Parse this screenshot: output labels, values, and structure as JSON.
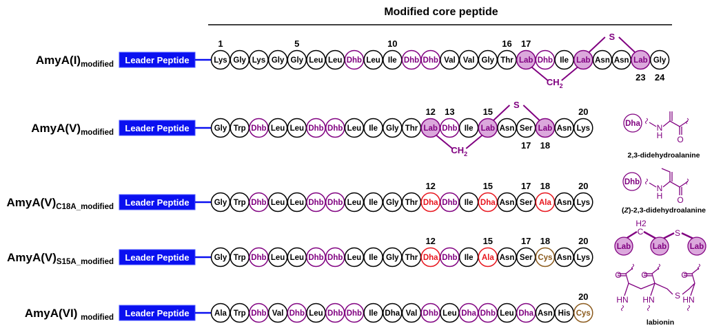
{
  "title": "Modified core peptide",
  "leader_label": "Leader Peptide",
  "colors": {
    "normal": "#000000",
    "purple": "#800080",
    "red": "#e8141c",
    "brown": "#8b5a1c",
    "lab_fill": "#dba8dc",
    "leader": "#0a10f0"
  },
  "rows": [
    {
      "name": "AmyA(I)",
      "subscript": "modified",
      "residues": [
        [
          "Lys",
          "n"
        ],
        [
          "Gly",
          "n"
        ],
        [
          "Lys",
          "n"
        ],
        [
          "Gly",
          "n"
        ],
        [
          "Gly",
          "n"
        ],
        [
          "Leu",
          "n"
        ],
        [
          "Leu",
          "n"
        ],
        [
          "Dhb",
          "p"
        ],
        [
          "Leu",
          "n"
        ],
        [
          "Ile",
          "n"
        ],
        [
          "Dhb",
          "p"
        ],
        [
          "Dhb",
          "p"
        ],
        [
          "Val",
          "n"
        ],
        [
          "Val",
          "n"
        ],
        [
          "Gly",
          "n"
        ],
        [
          "Thr",
          "n"
        ],
        [
          "Lab",
          "l"
        ],
        [
          "Dhb",
          "p"
        ],
        [
          "Ile",
          "n"
        ],
        [
          "Lab",
          "l"
        ],
        [
          "Asn",
          "n"
        ],
        [
          "Asn",
          "n"
        ],
        [
          "Lab",
          "l"
        ],
        [
          "Gly",
          "n"
        ]
      ],
      "numbers_above": [
        1,
        5,
        10,
        16,
        17
      ],
      "numbers_below": [
        23,
        24
      ],
      "bridges": [
        {
          "label": "S",
          "from": 20,
          "to": 23,
          "side": "above"
        },
        {
          "label": "CH",
          "label_sub": "2",
          "from": 17,
          "to": 20,
          "side": "below"
        }
      ]
    },
    {
      "name": "AmyA(V)",
      "subscript": "modified",
      "residues": [
        [
          "Gly",
          "n"
        ],
        [
          "Trp",
          "n"
        ],
        [
          "Dhb",
          "p"
        ],
        [
          "Leu",
          "n"
        ],
        [
          "Leu",
          "n"
        ],
        [
          "Dhb",
          "p"
        ],
        [
          "Dhb",
          "p"
        ],
        [
          "Leu",
          "n"
        ],
        [
          "Ile",
          "n"
        ],
        [
          "Gly",
          "n"
        ],
        [
          "Thr",
          "n"
        ],
        [
          "Lab",
          "l"
        ],
        [
          "Dhb",
          "p"
        ],
        [
          "Ile",
          "n"
        ],
        [
          "Lab",
          "l"
        ],
        [
          "Asn",
          "n"
        ],
        [
          "Ser",
          "n"
        ],
        [
          "Lab",
          "l"
        ],
        [
          "Asn",
          "n"
        ],
        [
          "Lys",
          "n"
        ]
      ],
      "numbers_above": [
        12,
        13,
        15,
        20
      ],
      "numbers_below": [
        17,
        18
      ],
      "bridges": [
        {
          "label": "S",
          "from": 15,
          "to": 18,
          "side": "above"
        },
        {
          "label": "CH",
          "label_sub": "2",
          "from": 12,
          "to": 15,
          "side": "below"
        }
      ]
    },
    {
      "name": "AmyA(V)",
      "subscript": "C18A_modified",
      "residues": [
        [
          "Gly",
          "n"
        ],
        [
          "Trp",
          "n"
        ],
        [
          "Dhb",
          "p"
        ],
        [
          "Leu",
          "n"
        ],
        [
          "Leu",
          "n"
        ],
        [
          "Dhb",
          "p"
        ],
        [
          "Dhb",
          "p"
        ],
        [
          "Leu",
          "n"
        ],
        [
          "Ile",
          "n"
        ],
        [
          "Gly",
          "n"
        ],
        [
          "Thr",
          "n"
        ],
        [
          "Dha",
          "r"
        ],
        [
          "Dhb",
          "p"
        ],
        [
          "Ile",
          "n"
        ],
        [
          "Dha",
          "r"
        ],
        [
          "Asn",
          "n"
        ],
        [
          "Ser",
          "n"
        ],
        [
          "Ala",
          "r"
        ],
        [
          "Asn",
          "n"
        ],
        [
          "Lys",
          "n"
        ]
      ],
      "numbers_above": [
        12,
        15,
        17,
        18,
        20
      ],
      "numbers_below": [],
      "bridges": []
    },
    {
      "name": "AmyA(V)",
      "subscript": "S15A_modified",
      "residues": [
        [
          "Gly",
          "n"
        ],
        [
          "Trp",
          "n"
        ],
        [
          "Dhb",
          "p"
        ],
        [
          "Leu",
          "n"
        ],
        [
          "Leu",
          "n"
        ],
        [
          "Dhb",
          "p"
        ],
        [
          "Dhb",
          "p"
        ],
        [
          "Leu",
          "n"
        ],
        [
          "Ile",
          "n"
        ],
        [
          "Gly",
          "n"
        ],
        [
          "Thr",
          "n"
        ],
        [
          "Dha",
          "r"
        ],
        [
          "Dhb",
          "p"
        ],
        [
          "Ile",
          "n"
        ],
        [
          "Ala",
          "r"
        ],
        [
          "Asn",
          "n"
        ],
        [
          "Ser",
          "n"
        ],
        [
          "Cys",
          "b"
        ],
        [
          "Asn",
          "n"
        ],
        [
          "Lys",
          "n"
        ]
      ],
      "numbers_above": [
        12,
        15,
        17,
        18,
        20
      ],
      "numbers_below": [],
      "bridges": []
    },
    {
      "name": "AmyA(VI) ",
      "subscript": "modified",
      "residues": [
        [
          "Ala",
          "n"
        ],
        [
          "Trp",
          "n"
        ],
        [
          "Dhb",
          "p"
        ],
        [
          "Val",
          "n"
        ],
        [
          "Dhb",
          "p"
        ],
        [
          "Leu",
          "n"
        ],
        [
          "Dhb",
          "p"
        ],
        [
          "Dhb",
          "p"
        ],
        [
          "Ile",
          "n"
        ],
        [
          "Dha",
          "n"
        ],
        [
          "Val",
          "n"
        ],
        [
          "Dhb",
          "p"
        ],
        [
          "Leu",
          "n"
        ],
        [
          "Dha",
          "p"
        ],
        [
          "Dhb",
          "p"
        ],
        [
          "Leu",
          "n"
        ],
        [
          "Dha",
          "p"
        ],
        [
          "Asn",
          "n"
        ],
        [
          "His",
          "n"
        ],
        [
          "Cys",
          "b"
        ]
      ],
      "numbers_above": [
        20
      ],
      "numbers_below": [],
      "bridges": []
    }
  ],
  "legend": {
    "dha": {
      "symbol": "Dha",
      "caption": "2,3-didehydroalanine"
    },
    "dhb": {
      "symbol": "Dhb",
      "caption_prefix": "(",
      "caption_italic": "Z",
      "caption_rest": ")-2,3-didehydroalanine"
    },
    "lab": {
      "symbol": "Lab",
      "c": "C",
      "h2": "H2",
      "s": "S"
    },
    "labionin": {
      "caption": "labionin"
    },
    "atoms": {
      "N": "N",
      "H": "H",
      "O": "O",
      "HN": "HN",
      "S": "S"
    }
  }
}
